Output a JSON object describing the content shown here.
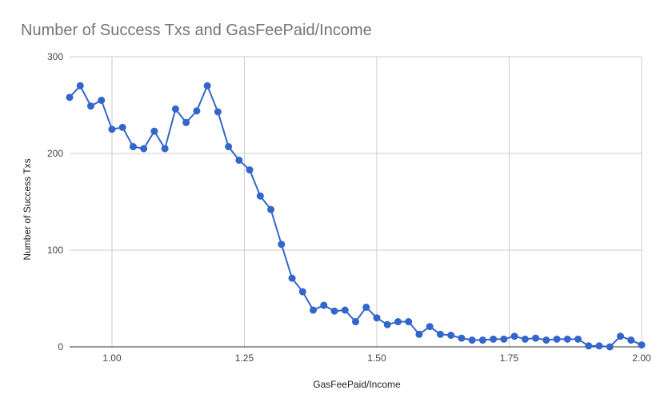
{
  "chart_data": {
    "type": "line",
    "title": "Number of Success Txs and GasFeePaid/Income",
    "xlabel": "GasFeePaid/Income",
    "ylabel": "Number of Success Txs",
    "xlim": [
      0.92,
      2.0
    ],
    "ylim": [
      0,
      300
    ],
    "x_ticks": [
      1.0,
      1.25,
      1.5,
      1.75,
      2.0
    ],
    "x_tick_labels": [
      "1.00",
      "1.25",
      "1.50",
      "1.75",
      "2.00"
    ],
    "y_ticks": [
      0,
      100,
      200,
      300
    ],
    "y_tick_labels": [
      "0",
      "100",
      "200",
      "300"
    ],
    "grid": true,
    "legend": "none",
    "colors": {
      "series": "#3366cc",
      "grid": "#cccccc",
      "axis": "#333333"
    },
    "series": [
      {
        "name": "Number of Success Txs",
        "x": [
          0.92,
          0.94,
          0.96,
          0.98,
          1.0,
          1.02,
          1.04,
          1.06,
          1.08,
          1.1,
          1.12,
          1.14,
          1.16,
          1.18,
          1.2,
          1.22,
          1.24,
          1.26,
          1.28,
          1.3,
          1.32,
          1.34,
          1.36,
          1.38,
          1.4,
          1.42,
          1.44,
          1.46,
          1.48,
          1.5,
          1.52,
          1.54,
          1.56,
          1.58,
          1.6,
          1.62,
          1.64,
          1.66,
          1.68,
          1.7,
          1.72,
          1.74,
          1.76,
          1.78,
          1.8,
          1.82,
          1.84,
          1.86,
          1.88,
          1.9,
          1.92,
          1.94,
          1.96,
          1.98,
          2.0
        ],
        "values": [
          258,
          270,
          249,
          255,
          225,
          227,
          207,
          205,
          223,
          205,
          246,
          232,
          244,
          270,
          243,
          207,
          193,
          183,
          156,
          142,
          106,
          71,
          57,
          38,
          43,
          37,
          38,
          26,
          41,
          30,
          23,
          26,
          26,
          13,
          21,
          13,
          12,
          9,
          7,
          7,
          8,
          8,
          11,
          8,
          9,
          7,
          8,
          8,
          8,
          1,
          1,
          0,
          11,
          7,
          2
        ]
      }
    ]
  }
}
